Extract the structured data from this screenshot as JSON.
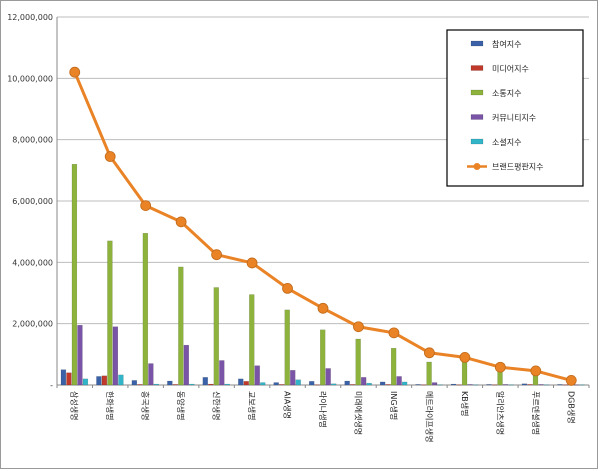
{
  "chart_data": {
    "type": "bar",
    "title": "",
    "xlabel": "",
    "ylabel": "",
    "ylim": [
      0,
      12000000
    ],
    "yticks": [
      0,
      2000000,
      4000000,
      6000000,
      8000000,
      10000000,
      12000000
    ],
    "ytick_labels": [
      "-",
      "2,000,000",
      "4,000,000",
      "6,000,000",
      "8,000,000",
      "10,000,000",
      "12,000,000"
    ],
    "grid": true,
    "legend_position": "top-right",
    "categories": [
      "삼성생명",
      "한화생명",
      "흥국생명",
      "동양생명",
      "신한생명",
      "교보생명",
      "AIA생명",
      "라이나생명",
      "미래에셋생명",
      "ING생명",
      "메트라이프생명",
      "KB생명",
      "알리안츠생명",
      "푸르덴셜생명",
      "DGB생명"
    ],
    "series": [
      {
        "name": "참여지수",
        "kind": "bar",
        "color": "#3b62a8",
        "values": [
          500000,
          280000,
          150000,
          130000,
          250000,
          200000,
          80000,
          120000,
          130000,
          100000,
          20000,
          30000,
          20000,
          40000,
          20000
        ]
      },
      {
        "name": "미디어지수",
        "kind": "bar",
        "color": "#c0392b",
        "values": [
          400000,
          300000,
          20000,
          20000,
          30000,
          120000,
          20000,
          10000,
          20000,
          20000,
          10000,
          10000,
          10000,
          20000,
          10000
        ]
      },
      {
        "name": "소통지수",
        "kind": "bar",
        "color": "#8db33c",
        "values": [
          7200000,
          4700000,
          4950000,
          3850000,
          3180000,
          2950000,
          2450000,
          1800000,
          1500000,
          1200000,
          750000,
          850000,
          500000,
          380000,
          90000
        ]
      },
      {
        "name": "커뮤니티지수",
        "kind": "bar",
        "color": "#7a54a6",
        "values": [
          1950000,
          1900000,
          700000,
          1300000,
          800000,
          630000,
          480000,
          540000,
          250000,
          280000,
          80000,
          20000,
          20000,
          20000,
          10000
        ]
      },
      {
        "name": "소셜지수",
        "kind": "bar",
        "color": "#33b5c9",
        "values": [
          200000,
          330000,
          30000,
          30000,
          30000,
          80000,
          170000,
          40000,
          60000,
          100000,
          10000,
          10000,
          10000,
          10000,
          10000
        ]
      },
      {
        "name": "브랜드평판지수",
        "kind": "line",
        "color": "#e98326",
        "values": [
          10200000,
          7450000,
          5850000,
          5320000,
          4250000,
          3980000,
          3150000,
          2500000,
          1900000,
          1700000,
          1050000,
          900000,
          580000,
          460000,
          150000
        ]
      }
    ]
  }
}
